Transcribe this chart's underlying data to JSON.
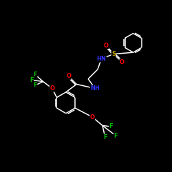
{
  "background_color": "#000000",
  "bond_color": "#ffffff",
  "atom_colors": {
    "O": "#ff0000",
    "N": "#3333ff",
    "S": "#ccaa00",
    "F": "#00bb00",
    "C": "#ffffff"
  },
  "font_size": 6.0,
  "fig_size": [
    2.5,
    2.5
  ],
  "dpi": 100,
  "lw": 1.1
}
